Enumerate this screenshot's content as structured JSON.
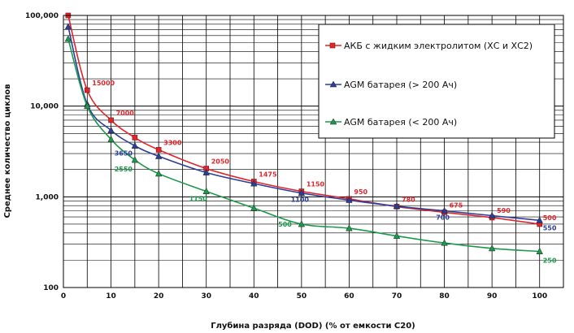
{
  "chart_data": {
    "type": "line",
    "title": "",
    "xlabel": "Глубина разряда (DOD) (% от емкости С20)",
    "ylabel": "Среднее количество циклов",
    "xlim": [
      0,
      105
    ],
    "ylim": [
      100,
      100000
    ],
    "yscale": "log",
    "grid": true,
    "legend_position": "top-right",
    "x_ticks": [
      "0",
      "10",
      "20",
      "30",
      "40",
      "50",
      "60",
      "70",
      "80",
      "90",
      "100"
    ],
    "y_ticks": [
      "100",
      "1,000",
      "10,000",
      "100,000"
    ],
    "series": [
      {
        "name": "АКБ с жидким электролитом (ХС и ХС2)",
        "color": "#e0262c",
        "marker": "square",
        "x": [
          1,
          5,
          10,
          15,
          20,
          30,
          40,
          50,
          60,
          70,
          80,
          90,
          100
        ],
        "y": [
          100000,
          15000,
          7000,
          4500,
          3300,
          2050,
          1475,
          1150,
          950,
          780,
          675,
          590,
          500
        ],
        "labels": [
          {
            "x": 5,
            "y": 15000,
            "text": "15000"
          },
          {
            "x": 10,
            "y": 7000,
            "text": "7000"
          },
          {
            "x": 20,
            "y": 3300,
            "text": "3300"
          },
          {
            "x": 30,
            "y": 2050,
            "text": "2050"
          },
          {
            "x": 40,
            "y": 1475,
            "text": "1475"
          },
          {
            "x": 50,
            "y": 1150,
            "text": "1150"
          },
          {
            "x": 60,
            "y": 950,
            "text": "950"
          },
          {
            "x": 70,
            "y": 780,
            "text": "780"
          },
          {
            "x": 80,
            "y": 675,
            "text": "675"
          },
          {
            "x": 90,
            "y": 590,
            "text": "590"
          },
          {
            "x": 100,
            "y": 500,
            "text": "500"
          }
        ]
      },
      {
        "name": "AGM батарея (> 200 Ач)",
        "color": "#2b3f98",
        "marker": "triangle",
        "x": [
          1,
          5,
          10,
          15,
          20,
          30,
          40,
          50,
          60,
          70,
          80,
          90,
          100
        ],
        "y": [
          75000,
          10500,
          5400,
          3650,
          2800,
          1850,
          1400,
          1100,
          920,
          790,
          700,
          620,
          550
        ],
        "labels": [
          {
            "x": 15,
            "y": 3650,
            "text": "3650"
          },
          {
            "x": 50,
            "y": 1100,
            "text": "1100"
          },
          {
            "x": 80,
            "y": 700,
            "text": "700"
          },
          {
            "x": 100,
            "y": 550,
            "text": "550"
          }
        ]
      },
      {
        "name": "AGM батарея (< 200 Ач)",
        "color": "#1a9a4a",
        "marker": "triangle",
        "x": [
          1,
          5,
          10,
          15,
          20,
          30,
          40,
          50,
          60,
          70,
          80,
          90,
          100
        ],
        "y": [
          55000,
          10000,
          4300,
          2550,
          1800,
          1150,
          750,
          500,
          450,
          370,
          310,
          270,
          250
        ],
        "labels": [
          {
            "x": 15,
            "y": 2550,
            "text": "2550"
          },
          {
            "x": 30,
            "y": 1150,
            "text": "1150"
          },
          {
            "x": 50,
            "y": 500,
            "text": "500"
          },
          {
            "x": 100,
            "y": 250,
            "text": "250"
          }
        ]
      }
    ]
  }
}
